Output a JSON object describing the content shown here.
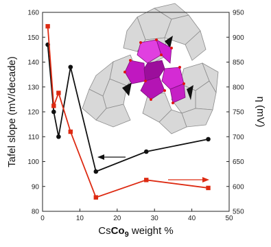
{
  "chart_data": {
    "type": "line",
    "xlabel_prefix": "Cs",
    "xlabel_bold": "Co",
    "xlabel_sub": "9",
    "xlabel_suffix": " weight %",
    "ylabel_left": "Tafel slope (mV/decade)",
    "ylabel_right": "η (mV)",
    "xlim": [
      0,
      50
    ],
    "ylim_left": [
      80,
      160
    ],
    "ylim_right": [
      550,
      950
    ],
    "x_ticks": [
      "0",
      "10",
      "20",
      "30",
      "40",
      "50"
    ],
    "y_ticks_left": [
      "80",
      "90",
      "100",
      "110",
      "120",
      "130",
      "140",
      "150",
      "160"
    ],
    "y_ticks_right": [
      "550",
      "600",
      "650",
      "700",
      "750",
      "800",
      "850",
      "900",
      "950"
    ],
    "series": [
      {
        "axis": "left",
        "color": "#111111",
        "marker": "circle",
        "x": [
          1.4,
          3.0,
          4.3,
          7.5,
          14.3,
          27.8,
          44.4
        ],
        "y": [
          147,
          120,
          110,
          138,
          96,
          104,
          109
        ]
      },
      {
        "axis": "right",
        "color": "#dd2a12",
        "marker": "square",
        "x": [
          1.4,
          3.0,
          4.3,
          7.5,
          14.3,
          27.8,
          44.4
        ],
        "y": [
          922,
          762,
          788,
          710,
          578,
          613,
          597
        ]
      }
    ],
    "inset": "polyhedral polyoxometalate cluster structure"
  }
}
